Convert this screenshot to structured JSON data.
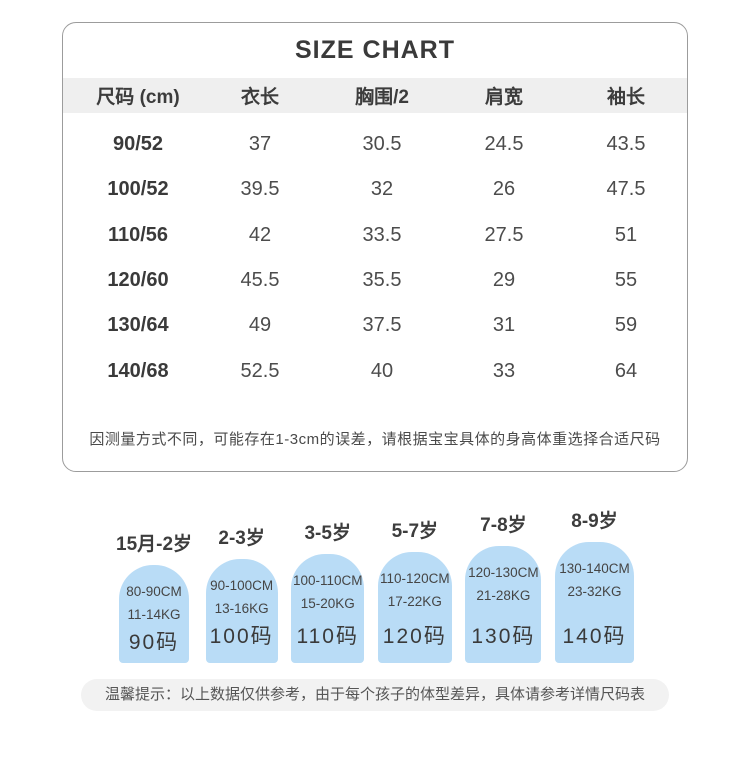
{
  "title": "SIZE CHART",
  "table": {
    "headers": [
      "尺码 (cm)",
      "衣长",
      "胸围/2",
      "肩宽",
      "袖长"
    ],
    "rows": [
      {
        "size": "90/52",
        "values": [
          "37",
          "30.5",
          "24.5",
          "43.5"
        ]
      },
      {
        "size": "100/52",
        "values": [
          "39.5",
          "32",
          "26",
          "47.5"
        ]
      },
      {
        "size": "110/56",
        "values": [
          "42",
          "33.5",
          "27.5",
          "51"
        ]
      },
      {
        "size": "120/60",
        "values": [
          "45.5",
          "35.5",
          "29",
          "55"
        ]
      },
      {
        "size": "130/64",
        "values": [
          "49",
          "37.5",
          "31",
          "59"
        ]
      },
      {
        "size": "140/68",
        "values": [
          "52.5",
          "40",
          "33",
          "64"
        ]
      }
    ],
    "note": "因测量方式不同，可能存在1-3cm的误差，请根据宝宝具体的身高体重选择合适尺码"
  },
  "age_guide": [
    {
      "age": "15月-2岁",
      "height": "80-90CM",
      "weight": "11-14KG",
      "code": "90码"
    },
    {
      "age": "2-3岁",
      "height": "90-100CM",
      "weight": "13-16KG",
      "code": "100码"
    },
    {
      "age": "3-5岁",
      "height": "100-110CM",
      "weight": "15-20KG",
      "code": "110码"
    },
    {
      "age": "5-7岁",
      "height": "110-120CM",
      "weight": "17-22KG",
      "code": "120码"
    },
    {
      "age": "7-8岁",
      "height": "120-130CM",
      "weight": "21-28KG",
      "code": "130码"
    },
    {
      "age": "8-9岁",
      "height": "130-140CM",
      "weight": "23-32KG",
      "code": "140码"
    }
  ],
  "tip": "温馨提示：以上数据仅供参考，由于每个孩子的体型差异，具体请参考详情尺码表",
  "colors": {
    "box_blue": "#b9dcf6",
    "header_bg": "#efefef",
    "card_border": "#9c9c9c",
    "tip_bg": "#f2f2f2",
    "text_dark": "#3a3a3a"
  },
  "chart_data": {
    "type": "table",
    "title": "SIZE CHART",
    "columns": [
      "尺码 (cm)",
      "衣长",
      "胸围/2",
      "肩宽",
      "袖长"
    ],
    "rows": [
      [
        "90/52",
        37,
        30.5,
        24.5,
        43.5
      ],
      [
        "100/52",
        39.5,
        32,
        26,
        47.5
      ],
      [
        "110/56",
        42,
        33.5,
        27.5,
        51
      ],
      [
        "120/60",
        45.5,
        35.5,
        29,
        55
      ],
      [
        "130/64",
        49,
        37.5,
        31,
        59
      ],
      [
        "140/68",
        52.5,
        40,
        33,
        64
      ]
    ],
    "age_size_mapping": [
      {
        "age": "15月-2岁",
        "height_cm": "80-90",
        "weight_kg": "11-14",
        "size": 90
      },
      {
        "age": "2-3岁",
        "height_cm": "90-100",
        "weight_kg": "13-16",
        "size": 100
      },
      {
        "age": "3-5岁",
        "height_cm": "100-110",
        "weight_kg": "15-20",
        "size": 110
      },
      {
        "age": "5-7岁",
        "height_cm": "110-120",
        "weight_kg": "17-22",
        "size": 120
      },
      {
        "age": "7-8岁",
        "height_cm": "120-130",
        "weight_kg": "21-28",
        "size": 130
      },
      {
        "age": "8-9岁",
        "height_cm": "130-140",
        "weight_kg": "23-32",
        "size": 140
      }
    ]
  }
}
